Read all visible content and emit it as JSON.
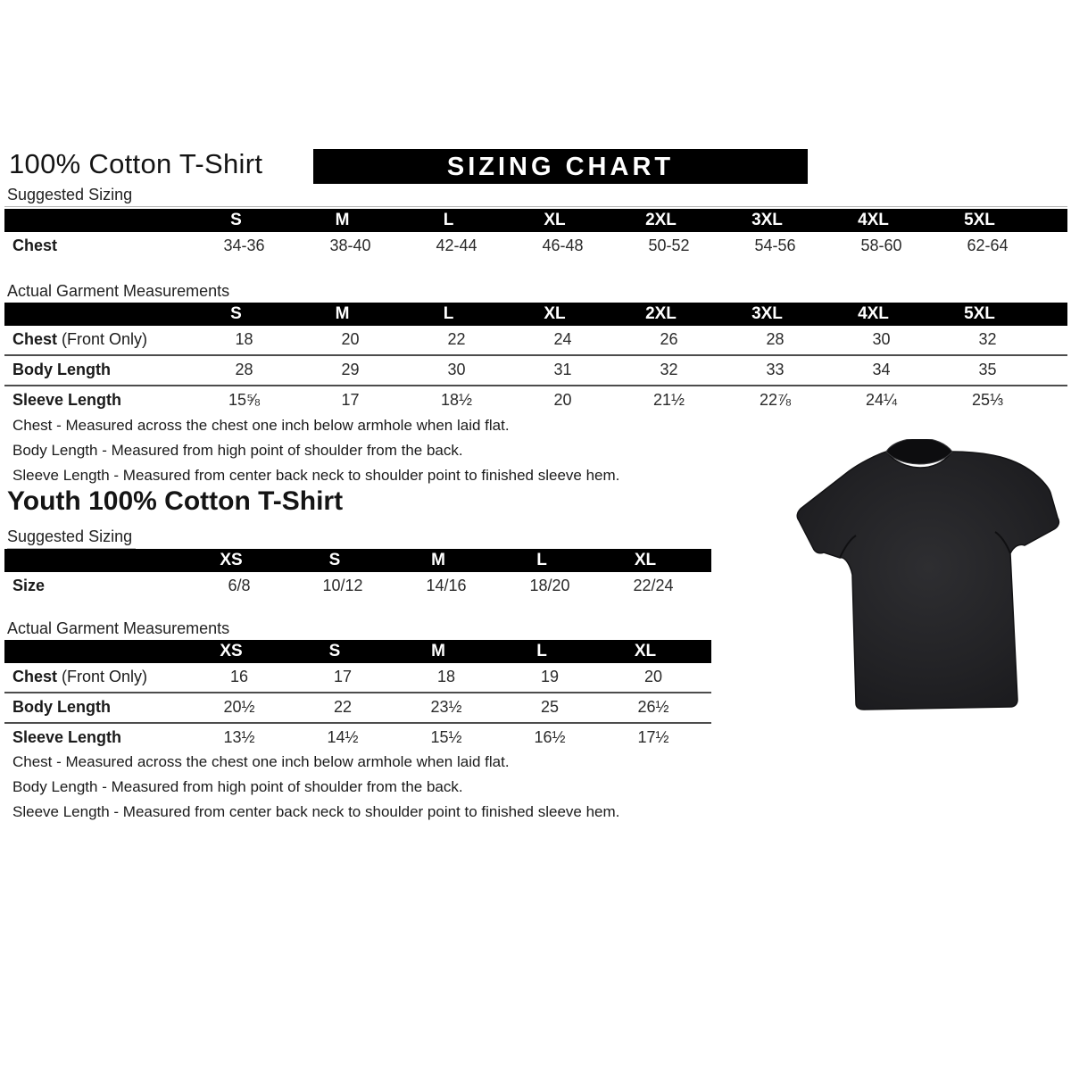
{
  "page": {
    "adult_title": "100% Cotton T-Shirt",
    "banner": "SIZING CHART",
    "youth_title": "Youth 100% Cotton T-Shirt",
    "suggested_sizing_label": "Suggested Sizing",
    "actual_measurements_label": "Actual Garment Measurements",
    "colors": {
      "banner_bg": "#000000",
      "banner_text": "#ffffff",
      "table_header_bg": "#000000",
      "table_header_text": "#ffffff",
      "body_text": "#1c1c1c",
      "shirt_color": "#1e1e20",
      "background": "#ffffff"
    },
    "tshirt_image": "black-short-sleeve-crewneck-tshirt-photo"
  },
  "adult": {
    "suggested": {
      "columns": [
        "S",
        "M",
        "L",
        "XL",
        "2XL",
        "3XL",
        "4XL",
        "5XL"
      ],
      "rows": [
        {
          "label": "Chest",
          "label_note": "",
          "values": [
            "34-36",
            "38-40",
            "42-44",
            "46-48",
            "50-52",
            "54-56",
            "58-60",
            "62-64"
          ]
        }
      ]
    },
    "actual": {
      "columns": [
        "S",
        "M",
        "L",
        "XL",
        "2XL",
        "3XL",
        "4XL",
        "5XL"
      ],
      "rows": [
        {
          "label": "Chest",
          "label_note": "(Front Only)",
          "values": [
            "18",
            "20",
            "22",
            "24",
            "26",
            "28",
            "30",
            "32"
          ]
        },
        {
          "label": "Body Length",
          "label_note": "",
          "values": [
            "28",
            "29",
            "30",
            "31",
            "32",
            "33",
            "34",
            "35"
          ]
        },
        {
          "label": "Sleeve Length",
          "label_note": "",
          "values": [
            "15⅝",
            "17",
            "18½",
            "20",
            "21½",
            "22⅞",
            "24¼",
            "25⅓"
          ]
        }
      ]
    },
    "notes": [
      "Chest - Measured across the chest one inch below armhole when laid flat.",
      "Body Length - Measured from high point of shoulder from the back.",
      "Sleeve Length - Measured from center back neck to shoulder point to finished sleeve hem."
    ]
  },
  "youth": {
    "suggested": {
      "columns": [
        "XS",
        "S",
        "M",
        "L",
        "XL"
      ],
      "rows": [
        {
          "label": "Size",
          "label_note": "",
          "values": [
            "6/8",
            "10/12",
            "14/16",
            "18/20",
            "22/24"
          ]
        }
      ]
    },
    "actual": {
      "columns": [
        "XS",
        "S",
        "M",
        "L",
        "XL"
      ],
      "rows": [
        {
          "label": "Chest",
          "label_note": "(Front Only)",
          "values": [
            "16",
            "17",
            "18",
            "19",
            "20"
          ]
        },
        {
          "label": "Body Length",
          "label_note": "",
          "values": [
            "20½",
            "22",
            "23½",
            "25",
            "26½"
          ]
        },
        {
          "label": "Sleeve Length",
          "label_note": "",
          "values": [
            "13½",
            "14½",
            "15½",
            "16½",
            "17½"
          ]
        }
      ]
    },
    "notes": [
      "Chest - Measured across the chest one inch below armhole when laid flat.",
      "Body Length - Measured from high point of shoulder from the back.",
      "Sleeve Length - Measured from center back neck to shoulder point to finished sleeve hem."
    ]
  }
}
